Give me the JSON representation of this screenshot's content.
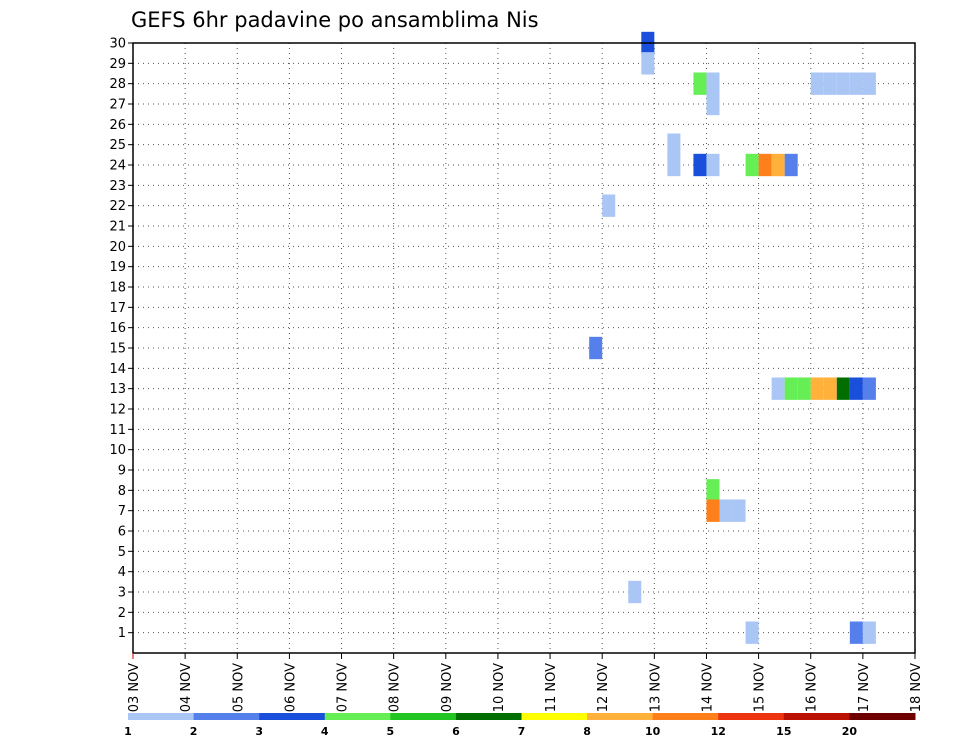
{
  "chart_data": {
    "type": "heatmap",
    "title": "GEFS 6hr padavine po ansamblima Nis",
    "xlabel": "",
    "ylabel": "",
    "x_ticks": [
      "03 NOV",
      "04 NOV",
      "05 NOV",
      "06 NOV",
      "07 NOV",
      "08 NOV",
      "09 NOV",
      "10 NOV",
      "11 NOV",
      "12 NOV",
      "13 NOV",
      "14 NOV",
      "15 NOV",
      "16 NOV",
      "17 NOV",
      "18 NOV"
    ],
    "y_ticks": [
      "1",
      "2",
      "3",
      "4",
      "5",
      "6",
      "7",
      "8",
      "9",
      "10",
      "11",
      "12",
      "13",
      "14",
      "15",
      "16",
      "17",
      "18",
      "19",
      "20",
      "21",
      "22",
      "23",
      "24",
      "25",
      "26",
      "27",
      "28",
      "29",
      "30"
    ],
    "xlim": [
      3,
      18
    ],
    "ylim": [
      0,
      30
    ],
    "grid": true,
    "cells": [
      {
        "day": 12.875,
        "member": 30,
        "color": "#1a4fdc"
      },
      {
        "day": 12.875,
        "member": 29,
        "color": "#aac6f5"
      },
      {
        "day": 13.875,
        "member": 28,
        "color": "#66ee55"
      },
      {
        "day": 14.125,
        "member": 28,
        "color": "#aac6f5"
      },
      {
        "day": 14.125,
        "member": 27,
        "color": "#aac6f5"
      },
      {
        "day": 16.125,
        "member": 28,
        "color": "#aac6f5"
      },
      {
        "day": 16.375,
        "member": 28,
        "color": "#aac6f5"
      },
      {
        "day": 16.625,
        "member": 28,
        "color": "#aac6f5"
      },
      {
        "day": 16.875,
        "member": 28,
        "color": "#aac6f5"
      },
      {
        "day": 17.125,
        "member": 28,
        "color": "#aac6f5"
      },
      {
        "day": 13.375,
        "member": 25,
        "color": "#aac6f5"
      },
      {
        "day": 13.375,
        "member": 24,
        "color": "#aac6f5"
      },
      {
        "day": 13.875,
        "member": 24,
        "color": "#1a4fdc"
      },
      {
        "day": 14.125,
        "member": 24,
        "color": "#aac6f5"
      },
      {
        "day": 14.875,
        "member": 24,
        "color": "#66ee55"
      },
      {
        "day": 15.125,
        "member": 24,
        "color": "#ff7f1a"
      },
      {
        "day": 15.375,
        "member": 24,
        "color": "#ffb13c"
      },
      {
        "day": 15.625,
        "member": 24,
        "color": "#5580ec"
      },
      {
        "day": 12.125,
        "member": 22,
        "color": "#aac6f5"
      },
      {
        "day": 11.875,
        "member": 15,
        "color": "#5580ec"
      },
      {
        "day": 15.375,
        "member": 13,
        "color": "#aac6f5"
      },
      {
        "day": 15.625,
        "member": 13,
        "color": "#66ee55"
      },
      {
        "day": 15.875,
        "member": 13,
        "color": "#66ee55"
      },
      {
        "day": 16.125,
        "member": 13,
        "color": "#ffb13c"
      },
      {
        "day": 16.375,
        "member": 13,
        "color": "#ffb13c"
      },
      {
        "day": 16.625,
        "member": 13,
        "color": "#006f00"
      },
      {
        "day": 16.875,
        "member": 13,
        "color": "#1a4fdc"
      },
      {
        "day": 17.125,
        "member": 13,
        "color": "#5580ec"
      },
      {
        "day": 14.125,
        "member": 8,
        "color": "#66ee55"
      },
      {
        "day": 14.125,
        "member": 7,
        "color": "#ff7f1a"
      },
      {
        "day": 14.375,
        "member": 7,
        "color": "#aac6f5"
      },
      {
        "day": 14.625,
        "member": 7,
        "color": "#aac6f5"
      },
      {
        "day": 12.625,
        "member": 3,
        "color": "#aac6f5"
      },
      {
        "day": 14.875,
        "member": 1,
        "color": "#aac6f5"
      },
      {
        "day": 16.875,
        "member": 1,
        "color": "#5580ec"
      },
      {
        "day": 17.125,
        "member": 1,
        "color": "#aac6f5"
      }
    ],
    "legend": {
      "placement": "bottom",
      "colors": [
        "#aac6f5",
        "#5580ec",
        "#1a4fdc",
        "#66ee55",
        "#22c522",
        "#006f00",
        "#ffff00",
        "#ffb13c",
        "#ff7f1a",
        "#ee3311",
        "#bb1100",
        "#6e0000"
      ],
      "labels": [
        "1",
        "2",
        "3",
        "4",
        "5",
        "6",
        "7",
        "8",
        "10",
        "12",
        "15",
        "20"
      ]
    }
  }
}
